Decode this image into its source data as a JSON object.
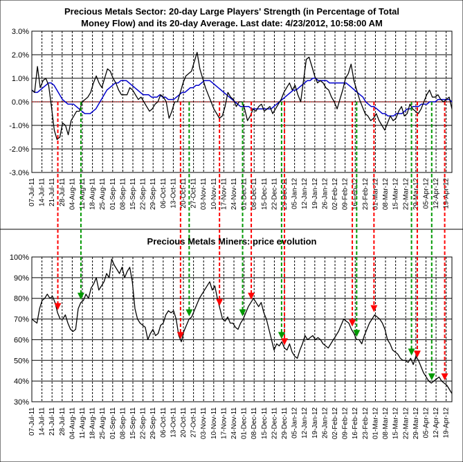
{
  "colors": {
    "background": "#ffffff",
    "price_line": "#000000",
    "average_line": "#0000cc",
    "zero_line": "#cc0000",
    "sell_arrow": "#ff0000",
    "buy_arrow": "#009900"
  },
  "chart_data": [
    {
      "type": "line",
      "title_line1": "Precious Metals Sector: 20-day Large Players' Strength (in Percentage of Total",
      "title_line2": "Money Flow) and its 20-day Average. Last date: 4/23/2012, 10:58:00 AM",
      "ylim": [
        -3.0,
        3.0
      ],
      "y_ticks": [
        "3.0%",
        "2.0%",
        "1.0%",
        "0.0%",
        "-1.0%",
        "-2.0%",
        "-3.0%"
      ],
      "x_ticks": [
        "07-Jul-11",
        "14-Jul-11",
        "21-Jul-11",
        "28-Jul-11",
        "04-Aug-11",
        "11-Aug-11",
        "18-Aug-11",
        "25-Aug-11",
        "01-Sep-11",
        "08-Sep-11",
        "15-Sep-11",
        "22-Sep-11",
        "29-Sep-11",
        "06-Oct-11",
        "13-Oct-11",
        "20-Oct-11",
        "27-Oct-11",
        "03-Nov-11",
        "10-Nov-11",
        "17-Nov-11",
        "24-Nov-11",
        "01-Dec-11",
        "08-Dec-11",
        "15-Dec-11",
        "22-Dec-11",
        "29-Dec-11",
        "05-Jan-12",
        "12-Jan-12",
        "19-Jan-12",
        "26-Jan-12",
        "02-Feb-12",
        "09-Feb-12",
        "16-Feb-12",
        "23-Feb-12",
        "01-Mar-12",
        "08-Mar-12",
        "15-Mar-12",
        "22-Mar-12",
        "29-Mar-12",
        "05-Apr-12",
        "12-Apr-12",
        "19-Apr-12"
      ],
      "grid": "dashed vertical weekly lines, solid horizontal lines",
      "series": [
        {
          "values": [
            0.5,
            0.4,
            1.5,
            0.6,
            0.9,
            1.0,
            0.7,
            -0.2,
            -1.2,
            -1.6,
            -1.5,
            -0.9,
            -1.0,
            -1.4,
            -0.8,
            -0.6,
            -0.4,
            -0.4,
            0.0,
            0.1,
            0.2,
            0.4,
            0.8,
            1.1,
            0.8,
            0.6,
            1.0,
            1.4,
            1.3,
            1.0,
            0.8,
            0.5,
            0.3,
            0.3,
            0.3,
            0.6,
            0.5,
            0.3,
            0.1,
            0.2,
            0.0,
            -0.2,
            -0.4,
            -0.3,
            -0.1,
            0.0,
            0.3,
            0.2,
            0.0,
            -0.7,
            -0.4,
            0.0,
            0.0,
            0.4,
            0.8,
            1.1,
            1.2,
            1.3,
            1.7,
            2.1,
            1.4,
            1.0,
            0.6,
            0.3,
            0.0,
            -0.3,
            -0.5,
            -0.7,
            -0.6,
            -0.2,
            0.4,
            0.2,
            0.1,
            -0.2,
            0.0,
            0.0,
            -0.3,
            -0.8,
            -0.6,
            -0.3,
            -0.4,
            -0.2,
            -0.1,
            -0.4,
            -0.3,
            -0.2,
            -0.5,
            -0.3,
            -0.1,
            0.1,
            0.4,
            0.6,
            0.8,
            0.5,
            0.7,
            0.3,
            0.0,
            0.9,
            1.8,
            1.9,
            1.5,
            1.1,
            0.8,
            0.9,
            0.8,
            0.6,
            0.5,
            0.2,
            0.0,
            -0.3,
            0.1,
            0.5,
            1.0,
            1.2,
            1.6,
            0.9,
            0.5,
            0.1,
            -0.2,
            -0.5,
            -0.6,
            -0.8,
            -0.7,
            -0.5,
            -0.8,
            -1.0,
            -1.2,
            -0.9,
            -0.6,
            -0.8,
            -0.7,
            -0.4,
            -0.2,
            -0.6,
            -0.5,
            -0.1,
            -0.3,
            -0.4,
            -0.5,
            -0.3,
            0.0,
            0.3,
            0.5,
            0.2,
            0.2,
            0.3,
            0.1,
            0.0,
            0.1,
            0.2,
            -0.3
          ]
        },
        {
          "values": [
            0.5,
            0.4,
            0.4,
            0.5,
            0.6,
            0.7,
            0.8,
            0.8,
            0.7,
            0.5,
            0.3,
            0.1,
            0.0,
            -0.1,
            -0.1,
            -0.1,
            -0.2,
            -0.3,
            -0.4,
            -0.5,
            -0.5,
            -0.5,
            -0.4,
            -0.3,
            -0.1,
            0.1,
            0.3,
            0.5,
            0.6,
            0.7,
            0.8,
            0.8,
            0.9,
            0.9,
            0.9,
            0.8,
            0.7,
            0.6,
            0.5,
            0.4,
            0.3,
            0.3,
            0.3,
            0.2,
            0.2,
            0.2,
            0.3,
            0.2,
            0.2,
            0.1,
            0.1,
            0.1,
            0.2,
            0.3,
            0.4,
            0.4,
            0.5,
            0.6,
            0.6,
            0.7,
            0.7,
            0.8,
            0.9,
            0.9,
            0.9,
            0.8,
            0.7,
            0.6,
            0.5,
            0.4,
            0.3,
            0.2,
            0.1,
            0.0,
            -0.1,
            -0.2,
            -0.2,
            -0.2,
            -0.2,
            -0.3,
            -0.3,
            -0.3,
            -0.3,
            -0.3,
            -0.3,
            -0.3,
            -0.3,
            -0.2,
            -0.1,
            0.0,
            0.1,
            0.2,
            0.3,
            0.4,
            0.5,
            0.5,
            0.6,
            0.7,
            0.8,
            0.9,
            0.9,
            1.0,
            1.0,
            0.9,
            0.9,
            0.9,
            0.9,
            0.8,
            0.8,
            0.8,
            0.8,
            0.8,
            0.8,
            0.8,
            0.7,
            0.6,
            0.5,
            0.4,
            0.3,
            0.2,
            0.0,
            -0.1,
            -0.2,
            -0.2,
            -0.3,
            -0.4,
            -0.5,
            -0.5,
            -0.6,
            -0.6,
            -0.6,
            -0.5,
            -0.5,
            -0.5,
            -0.4,
            -0.3,
            -0.3,
            -0.2,
            -0.2,
            -0.2,
            -0.1,
            -0.1,
            -0.1,
            0.0,
            0.0,
            0.0,
            0.1,
            0.1,
            0.1,
            0.1,
            0.1,
            0.0
          ]
        }
      ]
    },
    {
      "type": "line",
      "title": "Precious Metals Miners: price evolution",
      "ylim": [
        30,
        100
      ],
      "y_ticks": [
        "100%",
        "90%",
        "80%",
        "70%",
        "60%",
        "50%",
        "40%",
        "30%"
      ],
      "x_ticks": [
        "07-Jul-11",
        "14-Jul-11",
        "21-Jul-11",
        "28-Jul-11",
        "04-Aug-11",
        "11-Aug-11",
        "18-Aug-11",
        "25-Aug-11",
        "01-Sep-11",
        "08-Sep-11",
        "15-Sep-11",
        "22-Sep-11",
        "29-Sep-11",
        "06-Oct-11",
        "13-Oct-11",
        "20-Oct-11",
        "27-Oct-11",
        "03-Nov-11",
        "10-Nov-11",
        "17-Nov-11",
        "24-Nov-11",
        "01-Dec-11",
        "08-Dec-11",
        "15-Dec-11",
        "22-Dec-11",
        "29-Dec-11",
        "05-Jan-12",
        "12-Jan-12",
        "19-Jan-12",
        "26-Jan-12",
        "02-Feb-12",
        "09-Feb-12",
        "16-Feb-12",
        "23-Feb-12",
        "01-Mar-12",
        "08-Mar-12",
        "15-Mar-12",
        "22-Mar-12",
        "29-Mar-12",
        "05-Apr-12",
        "12-Apr-12",
        "19-Apr-12"
      ],
      "series": [
        {
          "values": [
            70,
            69,
            68,
            75,
            79,
            80,
            82,
            80,
            81,
            78,
            73,
            70,
            70,
            72,
            68,
            65,
            64,
            65,
            75,
            78,
            79,
            82,
            80,
            85,
            87,
            90,
            84,
            86,
            88,
            92,
            90,
            99,
            96,
            94,
            92,
            95,
            90,
            93,
            95,
            88,
            75,
            70,
            68,
            67,
            66,
            60,
            63,
            65,
            62,
            63,
            67,
            68,
            72,
            74,
            73,
            74,
            70,
            62,
            59,
            64,
            67,
            70,
            71,
            74,
            77,
            80,
            82,
            84,
            86,
            88,
            84,
            86,
            80,
            75,
            70,
            69,
            71,
            68,
            68,
            66,
            65,
            68,
            70,
            73,
            76,
            78,
            80,
            78,
            76,
            78,
            73,
            70,
            65,
            60,
            55,
            58,
            57,
            59,
            56,
            55,
            58,
            54,
            52,
            51,
            55,
            58,
            62,
            60,
            61,
            62,
            60,
            61,
            60,
            58,
            57,
            56,
            58,
            60,
            62,
            64,
            67,
            70,
            69,
            68,
            65,
            63,
            60,
            60,
            58,
            62,
            65,
            68,
            70,
            72,
            71,
            70,
            68,
            65,
            60,
            58,
            55,
            54,
            53,
            51,
            50,
            50,
            49,
            51,
            48,
            52,
            50,
            47,
            44,
            42,
            40,
            39,
            40,
            41,
            42,
            40,
            39,
            38,
            36,
            34
          ]
        }
      ]
    }
  ],
  "annotation_arrows": {
    "sell_dates": [
      "25-Jul-11",
      "18-Oct-11",
      "14-Nov-11",
      "06-Dec-11",
      "29-Dec-11",
      "14-Feb-12",
      "29-Feb-12",
      "30-Mar-12",
      "18-Apr-12"
    ],
    "buy_dates": [
      "10-Aug-11",
      "24-Oct-11",
      "30-Nov-11",
      "27-Dec-11",
      "17-Feb-12",
      "26-Mar-12",
      "09-Apr-12"
    ]
  }
}
